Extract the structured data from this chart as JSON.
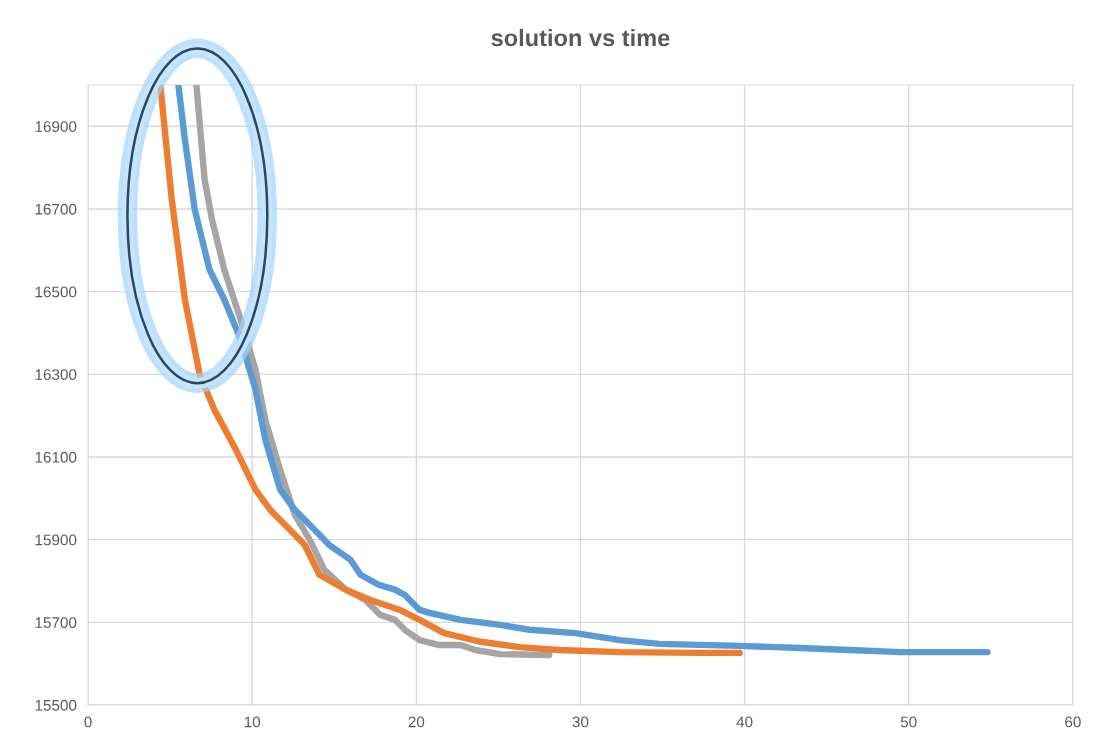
{
  "chart_data": {
    "type": "line",
    "title": "solution vs time",
    "xlim": [
      0,
      60
    ],
    "xticks": [
      0,
      10,
      20,
      30,
      40,
      50,
      60
    ],
    "ylim": [
      15500,
      17000
    ],
    "yticks": [
      15500,
      15700,
      15900,
      16100,
      16300,
      16500,
      16700,
      16900
    ],
    "grid": true,
    "marker": "none",
    "line_style": "solid",
    "series": [
      {
        "color": "#a5a5a5",
        "x": [
          6.6,
          7.1,
          7.55,
          8.3,
          9.3,
          10.2,
          10.8,
          11.7,
          12.6,
          13.5,
          14.4,
          15.7,
          16.9,
          17.8,
          18.7,
          19.3,
          20.2,
          21.4,
          22.7,
          23.6,
          25.1,
          28.1
        ],
        "values": [
          17000,
          16771,
          16675,
          16553,
          16432,
          16311,
          16190,
          16069,
          15960,
          15900,
          15827,
          15779,
          15754,
          15718,
          15706,
          15682,
          15657,
          15645,
          15645,
          15633,
          15623,
          15621
        ]
      },
      {
        "color": "#5b9bd5",
        "x": [
          5.5,
          5.9,
          6.5,
          7.4,
          8.3,
          9.3,
          10.2,
          10.8,
          11.7,
          12.6,
          13.2,
          13.8,
          14.7,
          16.0,
          16.6,
          17.7,
          18.7,
          19.3,
          20.2,
          20.8,
          22.7,
          25.1,
          26.9,
          29.7,
          32.4,
          34.8,
          39.7,
          43.4,
          46.4,
          49.5,
          54.8
        ],
        "values": [
          17000,
          16868,
          16699,
          16553,
          16481,
          16384,
          16263,
          16142,
          16021,
          15972,
          15948,
          15924,
          15887,
          15851,
          15815,
          15791,
          15779,
          15766,
          15730,
          15723,
          15706,
          15694,
          15682,
          15674,
          15657,
          15648,
          15643,
          15638,
          15633,
          15628,
          15628
        ]
      },
      {
        "color": "#ed7d31",
        "x": [
          4.4,
          5.1,
          5.9,
          6.8,
          7.7,
          9.0,
          10.2,
          11.1,
          12.3,
          13.2,
          14.1,
          15.7,
          17.2,
          19.0,
          20.2,
          21.7,
          23.9,
          26.3,
          28.7,
          32.4,
          37.3,
          39.7
        ],
        "values": [
          17000,
          16723,
          16481,
          16299,
          16214,
          16118,
          16021,
          15972,
          15924,
          15887,
          15815,
          15779,
          15754,
          15730,
          15706,
          15674,
          15653,
          15640,
          15633,
          15628,
          15626,
          15626
        ]
      }
    ]
  }
}
